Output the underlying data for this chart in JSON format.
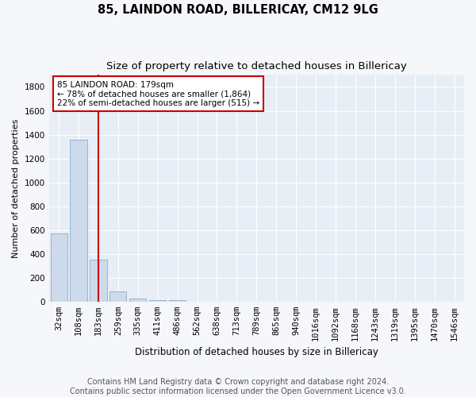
{
  "title": "85, LAINDON ROAD, BILLERICAY, CM12 9LG",
  "subtitle": "Size of property relative to detached houses in Billericay",
  "xlabel": "Distribution of detached houses by size in Billericay",
  "ylabel": "Number of detached properties",
  "categories": [
    "32sqm",
    "108sqm",
    "183sqm",
    "259sqm",
    "335sqm",
    "411sqm",
    "486sqm",
    "562sqm",
    "638sqm",
    "713sqm",
    "789sqm",
    "865sqm",
    "940sqm",
    "1016sqm",
    "1092sqm",
    "1168sqm",
    "1243sqm",
    "1319sqm",
    "1395sqm",
    "1470sqm",
    "1546sqm"
  ],
  "values": [
    570,
    1360,
    350,
    90,
    30,
    15,
    13,
    0,
    0,
    0,
    0,
    0,
    0,
    0,
    0,
    0,
    0,
    0,
    0,
    0,
    0
  ],
  "bar_color": "#ccdaeb",
  "bar_edge_color": "#89aece",
  "property_bar_index": 2,
  "property_line_color": "#cc0000",
  "annotation_line1": "85 LAINDON ROAD: 179sqm",
  "annotation_line2": "← 78% of detached houses are smaller (1,864)",
  "annotation_line3": "22% of semi-detached houses are larger (515) →",
  "annotation_box_edgecolor": "#cc0000",
  "ylim": [
    0,
    1900
  ],
  "yticks": [
    0,
    200,
    400,
    600,
    800,
    1000,
    1200,
    1400,
    1600,
    1800
  ],
  "footer_line1": "Contains HM Land Registry data © Crown copyright and database right 2024.",
  "footer_line2": "Contains public sector information licensed under the Open Government Licence v3.0.",
  "plot_bg": "#e8eef5",
  "grid_color": "#ffffff",
  "fig_bg": "#f5f7fa",
  "title_fontsize": 10.5,
  "subtitle_fontsize": 9.5,
  "ylabel_fontsize": 8,
  "xlabel_fontsize": 8.5,
  "tick_fontsize": 7.5,
  "ann_fontsize": 7.5,
  "footer_fontsize": 7
}
